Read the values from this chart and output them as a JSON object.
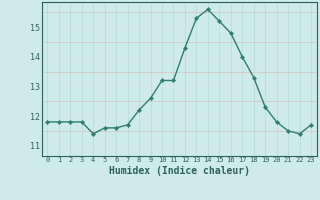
{
  "x": [
    0,
    1,
    2,
    3,
    4,
    5,
    6,
    7,
    8,
    9,
    10,
    11,
    12,
    13,
    14,
    15,
    16,
    17,
    18,
    19,
    20,
    21,
    22,
    23
  ],
  "y": [
    11.8,
    11.8,
    11.8,
    11.8,
    11.4,
    11.6,
    11.6,
    11.7,
    12.2,
    12.6,
    13.2,
    13.2,
    14.3,
    15.3,
    15.6,
    15.2,
    14.8,
    14.0,
    13.3,
    12.3,
    11.8,
    11.5,
    11.4,
    11.7
  ],
  "line_color": "#2e7d6e",
  "marker": "D",
  "marker_size": 2.2,
  "line_width": 1.0,
  "bg_color": "#ceeaea",
  "grid_color_v": "#b8d8d8",
  "grid_color_h": "#d4eaea",
  "xlabel": "Humidex (Indice chaleur)",
  "xlabel_fontsize": 7,
  "ylabel_ticks": [
    11,
    12,
    13,
    14,
    15
  ],
  "xlim": [
    -0.5,
    23.5
  ],
  "ylim": [
    10.65,
    15.85
  ],
  "tick_color": "#2e5f5f"
}
